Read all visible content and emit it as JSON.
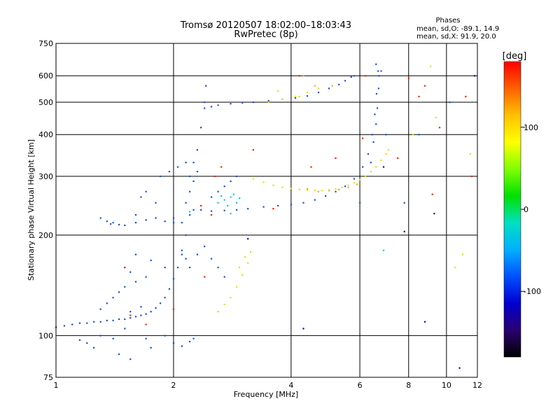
{
  "chart_data": {
    "type": "scatter",
    "title": "Tromsø 20120507 18:02:00–18:03:43",
    "subtitle": "RwPretec (8p)",
    "stats": {
      "heading": "Phases",
      "line1": "mean, sd,O: -89.1, 14.9",
      "line2": "mean, sd,X:  91.9, 20.0"
    },
    "xlabel": "Frequency [MHz]",
    "ylabel": "Stationary phase Virtual Height [km]",
    "x_scale": "log",
    "y_scale": "log",
    "xlim": [
      1,
      12
    ],
    "ylim": [
      75,
      750
    ],
    "x_ticks": [
      1,
      2,
      4,
      6,
      8,
      10,
      12
    ],
    "x_tick_labels": [
      "1",
      "2",
      "4",
      "6",
      "8",
      "10",
      "12"
    ],
    "y_ticks": [
      75,
      100,
      200,
      300,
      400,
      500,
      600,
      750
    ],
    "y_tick_labels": [
      "75",
      "100",
      "200",
      "300",
      "400",
      "500",
      "600",
      "750"
    ],
    "grid": true,
    "colorbar": {
      "label": "[deg]",
      "range": [
        -180,
        180
      ],
      "ticks": [
        100,
        0,
        -100
      ],
      "tick_labels": [
        "100",
        "0",
        "-100"
      ],
      "stops": [
        "#000000",
        "#2a0070",
        "#0000d0",
        "#0050ff",
        "#00b0ff",
        "#00e0c0",
        "#00e000",
        "#80ff00",
        "#ffff00",
        "#ffc000",
        "#ff6000",
        "#ff0000"
      ]
    },
    "point_colors": {
      "o_mode": "#1a4fe0",
      "o_mode_dark": "#1010a0",
      "x_mode": "#e8e000",
      "x_mode_orange": "#f0b000",
      "cyan": "#10c8e0",
      "scatter_misc": "#ff2000"
    },
    "series": [
      {
        "points": [
          [
            1.0,
            106
          ],
          [
            1.05,
            107
          ],
          [
            1.1,
            108
          ],
          [
            1.15,
            109
          ],
          [
            1.2,
            109
          ],
          [
            1.25,
            110
          ],
          [
            1.3,
            110
          ],
          [
            1.35,
            111
          ],
          [
            1.4,
            111
          ],
          [
            1.45,
            112
          ],
          [
            1.5,
            112
          ],
          [
            1.55,
            113
          ],
          [
            1.6,
            114
          ],
          [
            1.65,
            115
          ],
          [
            1.7,
            116
          ],
          [
            1.75,
            118
          ],
          [
            1.8,
            121
          ],
          [
            1.85,
            125
          ],
          [
            1.9,
            130
          ],
          [
            1.95,
            138
          ],
          [
            2.0,
            148
          ],
          [
            2.05,
            160
          ],
          [
            2.1,
            175
          ],
          [
            2.15,
            200
          ],
          [
            2.2,
            230
          ],
          [
            2.25,
            238
          ],
          [
            2.35,
            238
          ],
          [
            2.5,
            236
          ],
          [
            2.7,
            237
          ],
          [
            2.9,
            238
          ],
          [
            3.1,
            240
          ],
          [
            3.4,
            243
          ],
          [
            3.7,
            245
          ],
          [
            4.0,
            247
          ],
          [
            4.3,
            250
          ],
          [
            4.6,
            255
          ],
          [
            4.9,
            262
          ],
          [
            5.2,
            270
          ],
          [
            5.5,
            280
          ],
          [
            5.8,
            295
          ],
          [
            6.1,
            320
          ],
          [
            6.3,
            350
          ],
          [
            6.45,
            400
          ],
          [
            6.55,
            460
          ],
          [
            6.62,
            530
          ],
          [
            6.68,
            620
          ],
          [
            1.4,
            218
          ],
          [
            1.45,
            215
          ],
          [
            1.5,
            214
          ],
          [
            1.6,
            218
          ],
          [
            1.7,
            222
          ],
          [
            1.8,
            225
          ],
          [
            1.9,
            220
          ],
          [
            2.0,
            218
          ],
          [
            2.1,
            218
          ],
          [
            1.3,
            225
          ],
          [
            1.35,
            220
          ],
          [
            1.38,
            216
          ],
          [
            1.85,
            300
          ],
          [
            1.95,
            310
          ],
          [
            2.05,
            320
          ],
          [
            2.15,
            330
          ],
          [
            2.4,
            480
          ],
          [
            2.5,
            485
          ],
          [
            2.6,
            490
          ],
          [
            2.8,
            495
          ],
          [
            3.0,
            498
          ],
          [
            3.2,
            500
          ],
          [
            3.5,
            505
          ],
          [
            3.8,
            510
          ],
          [
            4.1,
            515
          ],
          [
            4.4,
            522
          ],
          [
            4.7,
            535
          ],
          [
            5.0,
            550
          ],
          [
            5.3,
            565
          ],
          [
            5.5,
            580
          ],
          [
            5.7,
            595
          ],
          [
            2.2,
            300
          ],
          [
            2.25,
            330
          ],
          [
            2.3,
            360
          ],
          [
            2.35,
            420
          ],
          [
            2.4,
            500
          ],
          [
            2.42,
            560
          ],
          [
            2.15,
            250
          ],
          [
            2.2,
            270
          ],
          [
            2.25,
            290
          ],
          [
            2.3,
            310
          ],
          [
            2.5,
            260
          ],
          [
            2.6,
            270
          ],
          [
            2.7,
            280
          ],
          [
            2.8,
            290
          ],
          [
            2.9,
            300
          ],
          [
            2.1,
            180
          ],
          [
            2.15,
            170
          ],
          [
            2.2,
            160
          ],
          [
            2.3,
            175
          ],
          [
            2.4,
            185
          ],
          [
            2.5,
            170
          ],
          [
            2.6,
            160
          ],
          [
            2.7,
            150
          ],
          [
            1.3,
            120
          ],
          [
            1.4,
            130
          ],
          [
            1.5,
            140
          ],
          [
            1.6,
            145
          ],
          [
            1.7,
            150
          ],
          [
            1.35,
            125
          ],
          [
            1.45,
            135
          ],
          [
            1.55,
            118
          ],
          [
            1.65,
            122
          ],
          [
            1.2,
            95
          ],
          [
            1.3,
            100
          ],
          [
            1.4,
            98
          ],
          [
            1.5,
            105
          ],
          [
            1.7,
            98
          ],
          [
            1.9,
            100
          ],
          [
            2.0,
            95
          ],
          [
            2.2,
            96
          ],
          [
            6.4,
            330
          ],
          [
            6.5,
            380
          ],
          [
            6.6,
            430
          ],
          [
            6.65,
            480
          ],
          [
            6.7,
            550
          ],
          [
            6.72,
            600
          ],
          [
            6.6,
            650
          ],
          [
            1.15,
            97
          ],
          [
            1.25,
            92
          ],
          [
            1.45,
            88
          ],
          [
            1.55,
            85
          ],
          [
            1.75,
            92
          ],
          [
            2.1,
            93
          ],
          [
            2.25,
            98
          ],
          [
            1.6,
            175
          ],
          [
            1.75,
            168
          ],
          [
            1.9,
            160
          ],
          [
            1.5,
            160
          ],
          [
            1.55,
            155
          ]
        ]
      },
      {
        "points": [
          [
            3.2,
            295
          ],
          [
            3.4,
            288
          ],
          [
            3.6,
            282
          ],
          [
            3.8,
            278
          ],
          [
            4.0,
            276
          ],
          [
            4.2,
            274
          ],
          [
            4.4,
            273
          ],
          [
            4.6,
            272
          ],
          [
            4.8,
            272
          ],
          [
            5.0,
            273
          ],
          [
            5.2,
            275
          ],
          [
            5.4,
            278
          ],
          [
            5.6,
            282
          ],
          [
            5.8,
            287
          ],
          [
            6.0,
            293
          ],
          [
            6.2,
            300
          ],
          [
            6.4,
            310
          ],
          [
            6.6,
            320
          ],
          [
            6.8,
            335
          ],
          [
            7.0,
            350
          ],
          [
            7.1,
            360
          ],
          [
            2.6,
            118
          ],
          [
            2.7,
            124
          ],
          [
            2.8,
            130
          ],
          [
            2.9,
            140
          ],
          [
            3.0,
            152
          ],
          [
            3.1,
            165
          ],
          [
            3.15,
            178
          ],
          [
            3.05,
            172
          ],
          [
            2.95,
            160
          ],
          [
            3.5,
            500
          ],
          [
            3.8,
            510
          ],
          [
            4.1,
            520
          ],
          [
            4.4,
            535
          ],
          [
            4.7,
            550
          ]
        ]
      },
      {
        "points": [
          [
            4.4,
            275
          ],
          [
            4.7,
            270
          ],
          [
            5.0,
            272
          ],
          [
            5.3,
            274
          ],
          [
            5.6,
            278
          ],
          [
            5.9,
            284
          ],
          [
            4.6,
            560
          ],
          [
            4.3,
            600
          ],
          [
            5.1,
            560
          ]
        ]
      },
      {
        "points": [
          [
            2.7,
            255
          ],
          [
            2.8,
            260
          ],
          [
            2.9,
            250
          ],
          [
            2.85,
            265
          ],
          [
            2.75,
            245
          ],
          [
            2.95,
            258
          ],
          [
            2.6,
            250
          ],
          [
            2.65,
            262
          ],
          [
            6.9,
            180
          ],
          [
            2.2,
            235
          ],
          [
            2.8,
            232
          ]
        ]
      },
      {
        "points": [
          [
            1.55,
            115
          ],
          [
            1.7,
            108
          ],
          [
            2.35,
            245
          ],
          [
            2.5,
            230
          ],
          [
            2.55,
            300
          ],
          [
            2.65,
            320
          ],
          [
            8.5,
            520
          ],
          [
            8.8,
            560
          ],
          [
            9.6,
            420
          ],
          [
            11.2,
            520
          ],
          [
            11.6,
            300
          ],
          [
            9.2,
            265
          ],
          [
            7.5,
            340
          ],
          [
            6.1,
            390
          ],
          [
            3.2,
            360
          ],
          [
            3.6,
            240
          ],
          [
            4.5,
            320
          ],
          [
            5.2,
            340
          ],
          [
            4.2,
            600
          ],
          [
            6.2,
            600
          ],
          [
            8.0,
            590
          ],
          [
            1.5,
            160
          ],
          [
            2.0,
            120
          ],
          [
            2.4,
            150
          ]
        ]
      },
      {
        "points": [
          [
            1.6,
            230
          ],
          [
            1.65,
            260
          ],
          [
            1.7,
            270
          ],
          [
            1.8,
            250
          ],
          [
            2.0,
            225
          ],
          [
            6.8,
            620
          ],
          [
            7.8,
            250
          ],
          [
            8.5,
            400
          ],
          [
            10.2,
            500
          ],
          [
            7.0,
            400
          ],
          [
            6.0,
            250
          ],
          [
            5.8,
            600
          ]
        ]
      },
      {
        "points": [
          [
            9.1,
            640
          ],
          [
            11.0,
            175
          ],
          [
            11.5,
            350
          ],
          [
            9.4,
            450
          ],
          [
            10.5,
            160
          ],
          [
            4.2,
            520
          ],
          [
            3.7,
            540
          ],
          [
            8.2,
            400
          ]
        ]
      },
      {
        "points": [
          [
            9.3,
            232
          ],
          [
            11.8,
            600
          ],
          [
            8.8,
            110
          ],
          [
            7.8,
            205
          ],
          [
            4.3,
            105
          ],
          [
            3.1,
            195
          ],
          [
            6.9,
            320
          ],
          [
            10.8,
            80
          ]
        ]
      }
    ]
  }
}
